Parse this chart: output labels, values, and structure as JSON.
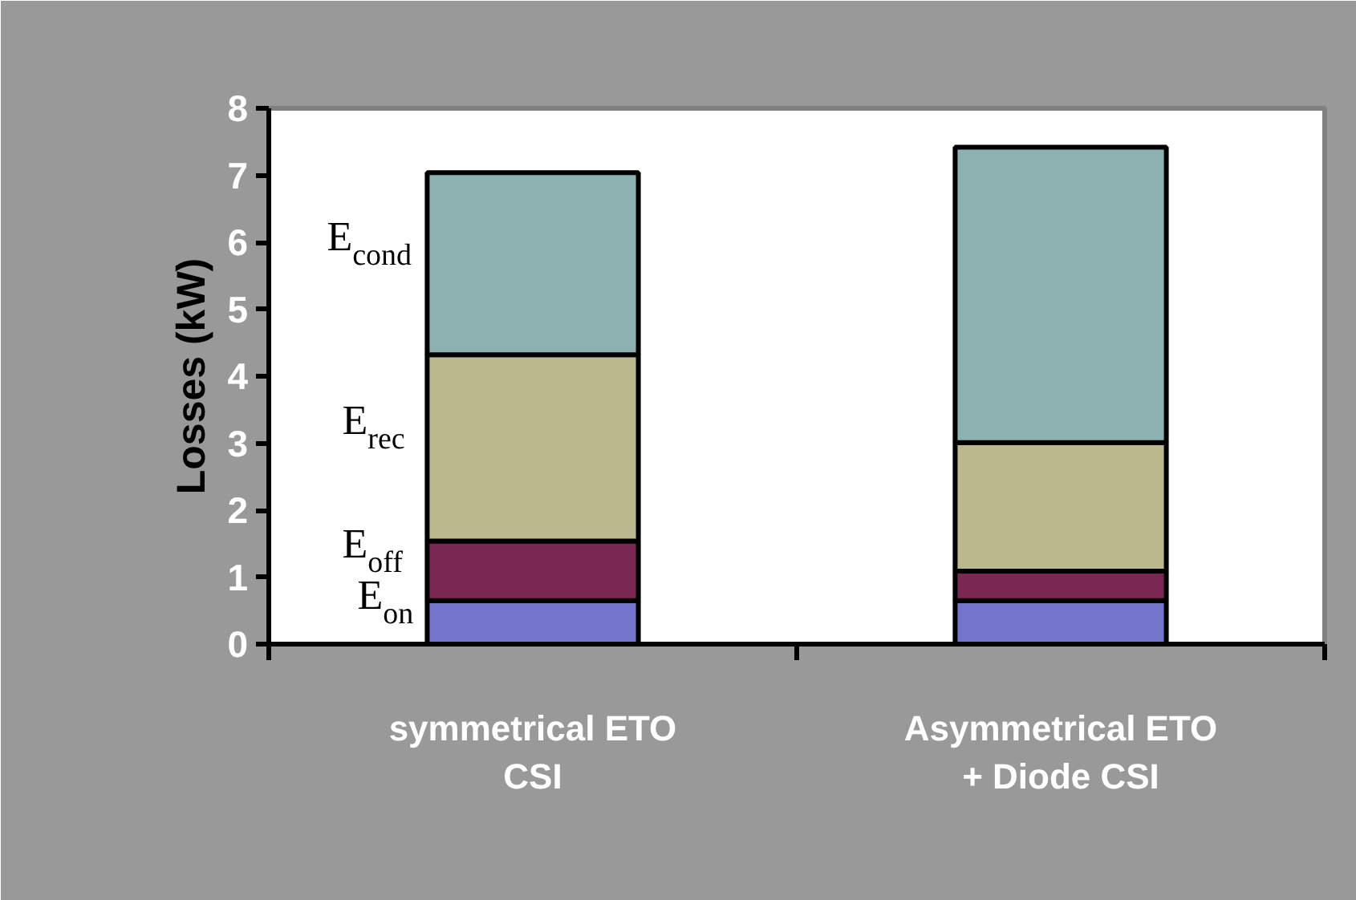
{
  "chart_data": {
    "type": "bar",
    "stacked": true,
    "ylabel": "Losses (kW)",
    "categories": [
      "symmetrical ETO\nCSI",
      "Asymmetrical ETO\n+ Diode CSI"
    ],
    "series": [
      {
        "name": "E$_{on}$",
        "color": "#7474cc",
        "values": [
          0.65,
          0.65
        ]
      },
      {
        "name": "E$_{off}$",
        "color": "#7a2852",
        "values": [
          0.89,
          0.44
        ]
      },
      {
        "name": "E$_{rec}$",
        "color": "#bcb88e",
        "values": [
          2.78,
          1.92
        ]
      },
      {
        "name": "E$_{cond}$",
        "color": "#8db0b0",
        "values": [
          2.72,
          4.41
        ]
      }
    ],
    "ylim": [
      0,
      8
    ],
    "yticks": [
      0,
      1,
      2,
      3,
      4,
      5,
      6,
      7,
      8
    ],
    "grid": false
  }
}
